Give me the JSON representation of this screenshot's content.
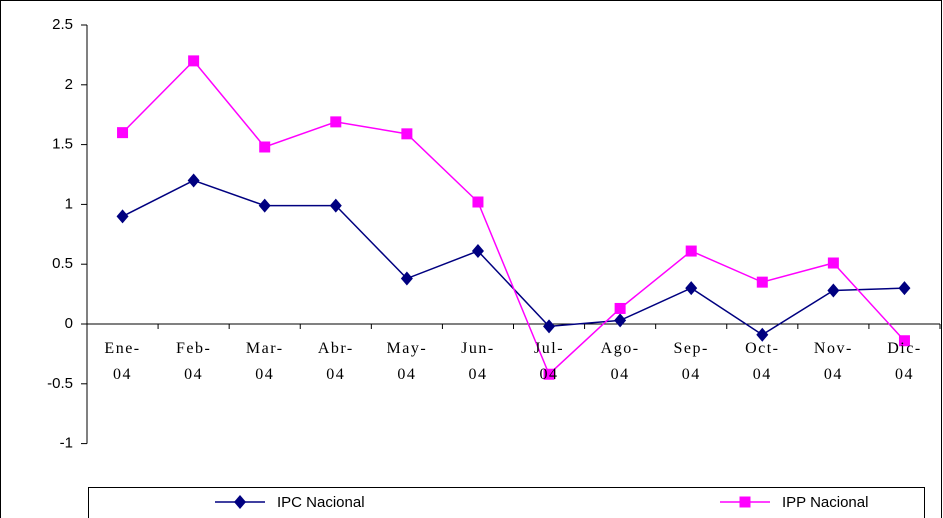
{
  "chart_data": {
    "type": "line",
    "categories": [
      "Ene-04",
      "Feb-04",
      "Mar-04",
      "Abr-04",
      "May-04",
      "Jun-04",
      "Jul-04",
      "Ago-04",
      "Sep-04",
      "Oct-04",
      "Nov-04",
      "Dic-04"
    ],
    "series": [
      {
        "name": "IPC Nacional",
        "color": "#000080",
        "marker": "diamond",
        "values": [
          0.9,
          1.2,
          0.99,
          0.99,
          0.38,
          0.61,
          -0.02,
          0.03,
          0.3,
          -0.09,
          0.28,
          0.3
        ]
      },
      {
        "name": "IPP Nacional",
        "color": "#ff00ff",
        "marker": "square",
        "values": [
          1.6,
          2.2,
          1.48,
          1.69,
          1.59,
          1.02,
          -0.42,
          0.13,
          0.61,
          0.35,
          0.51,
          -0.14
        ]
      }
    ],
    "ylim": [
      -1,
      2.5
    ],
    "yticks": [
      -1,
      -0.5,
      0,
      0.5,
      1,
      1.5,
      2,
      2.5
    ],
    "legend": "bottom"
  }
}
